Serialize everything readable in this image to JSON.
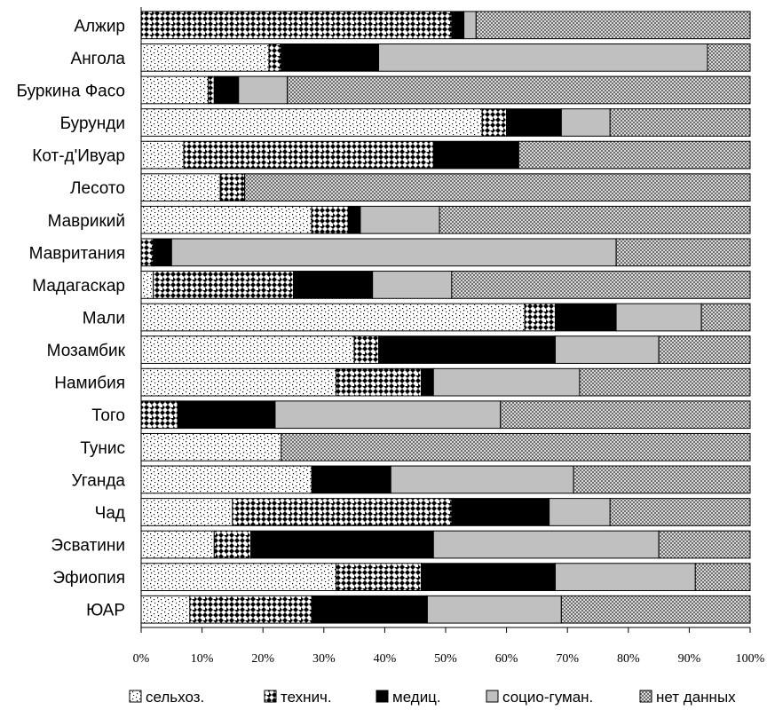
{
  "chart_data": {
    "type": "bar",
    "orientation": "horizontal",
    "stacked": "percent",
    "categories": [
      "Алжир",
      "Ангола",
      "Буркина Фасо",
      "Бурунди",
      "Кот-д'Ивуар",
      "Лесото",
      "Маврикий",
      "Мавритания",
      "Мадагаскар",
      "Мали",
      "Мозамбик",
      "Намибия",
      "Того",
      "Тунис",
      "Уганда",
      "Чад",
      "Эсватини",
      "Эфиопия",
      "ЮАР"
    ],
    "series": [
      {
        "name": "сельхоз.",
        "pattern": "dots",
        "values": [
          0,
          21,
          11,
          56,
          7,
          13,
          28,
          0,
          2,
          63,
          35,
          32,
          0,
          23,
          28,
          15,
          12,
          32,
          8
        ]
      },
      {
        "name": "технич.",
        "pattern": "checker",
        "values": [
          51,
          2,
          1,
          4,
          41,
          4,
          6,
          2,
          23,
          5,
          4,
          14,
          6,
          0,
          0,
          36,
          6,
          14,
          20
        ]
      },
      {
        "name": "медиц.",
        "color": "#000000",
        "values": [
          2,
          16,
          4,
          9,
          14,
          0,
          2,
          3,
          13,
          10,
          29,
          2,
          16,
          0,
          13,
          16,
          30,
          22,
          19
        ]
      },
      {
        "name": "социо-гуман.",
        "color": "#c0c0c0",
        "values": [
          2,
          54,
          8,
          8,
          0,
          0,
          13,
          73,
          13,
          14,
          17,
          24,
          37,
          0,
          30,
          10,
          37,
          23,
          22
        ]
      },
      {
        "name": "нет данных",
        "pattern": "crosshatch",
        "values": [
          45,
          7,
          76,
          23,
          38,
          83,
          51,
          22,
          49,
          8,
          15,
          28,
          41,
          77,
          29,
          23,
          15,
          9,
          31
        ]
      }
    ],
    "x_ticks": [
      "0%",
      "10%",
      "20%",
      "30%",
      "40%",
      "50%",
      "60%",
      "70%",
      "80%",
      "90%",
      "100%"
    ],
    "xlim": [
      0,
      100
    ],
    "legend_position": "bottom",
    "grid": false
  }
}
